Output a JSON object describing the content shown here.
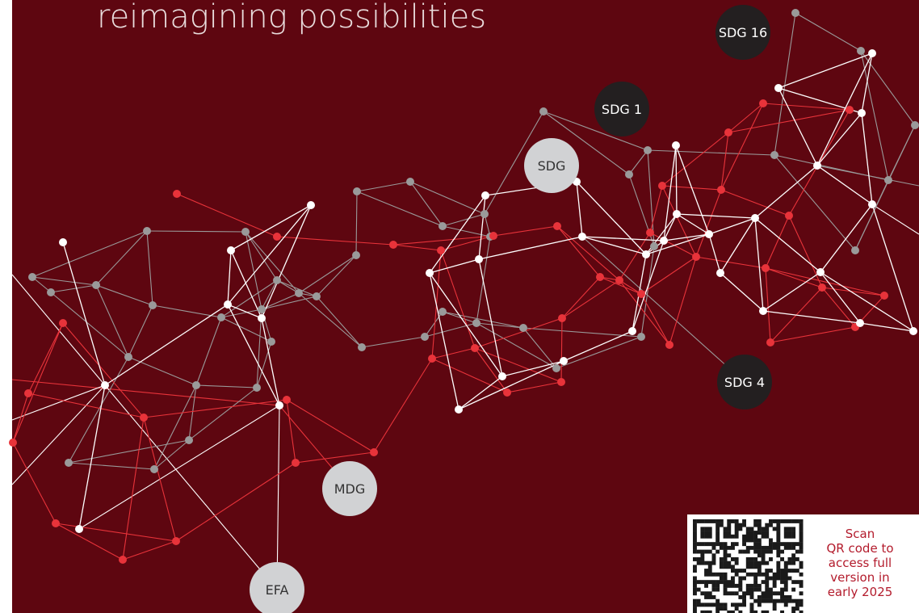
{
  "title": "reimagining possibilities",
  "nodes": [
    {
      "label": "SDG 16"
    },
    {
      "label": "SDG 1"
    },
    {
      "label": "SDG"
    },
    {
      "label": "SDG 4"
    },
    {
      "label": "MDG"
    },
    {
      "label": "EFA"
    }
  ],
  "qr": {
    "caption": [
      "Scan",
      "QR code to",
      "access full",
      "version in",
      "early 2025"
    ]
  }
}
